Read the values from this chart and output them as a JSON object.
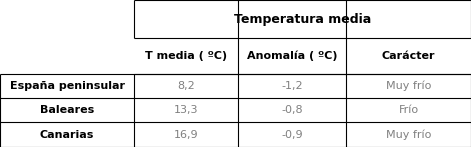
{
  "title": "Temperatura media",
  "col_headers": [
    "T media ( ºC)",
    "Anomalía ( ºC)",
    "Carácter"
  ],
  "row_headers": [
    "España peninsular",
    "Baleares",
    "Canarias"
  ],
  "data": [
    [
      "8,2",
      "-1,2",
      "Muy frío"
    ],
    [
      "13,3",
      "-0,8",
      "Frío"
    ],
    [
      "16,9",
      "-0,9",
      "Muy frío"
    ]
  ],
  "header_bold_color": "#000000",
  "data_text_color": "#808080",
  "row_header_text_color": "#000000",
  "bg_color": "#ffffff",
  "line_color": "#000000",
  "figsize": [
    4.71,
    1.47
  ],
  "dpi": 100,
  "c0": 0.0,
  "c1": 0.285,
  "c2": 0.505,
  "c3": 0.735,
  "c4": 1.0,
  "r0": 1.0,
  "r1": 0.74,
  "r2": 0.5,
  "r3": 0.335,
  "r4": 0.168,
  "r5": 0.0
}
